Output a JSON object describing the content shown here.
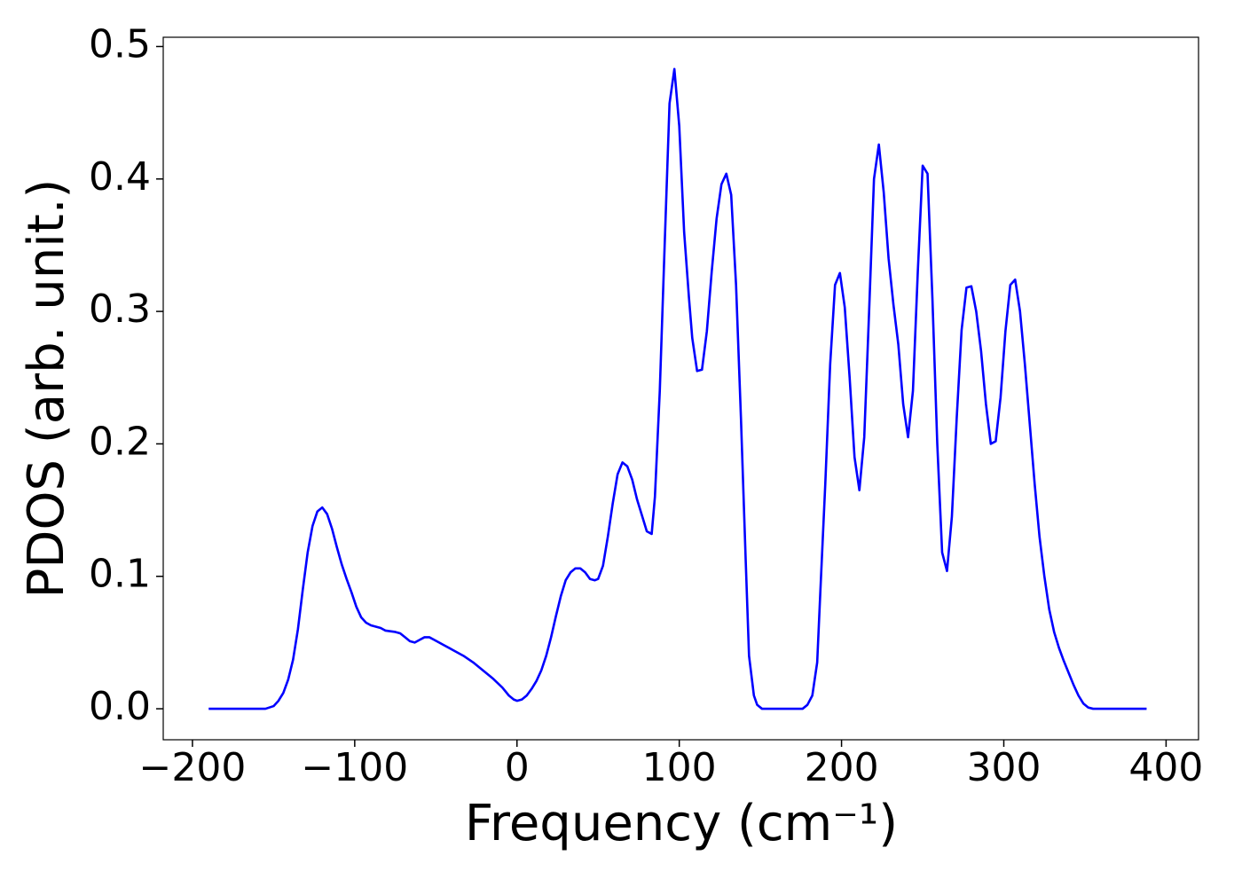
{
  "chart_data": {
    "type": "line",
    "xlabel": "Frequency (cm⁻¹)",
    "ylabel": "PDOS (arb. unit.)",
    "xlim": [
      -218,
      420
    ],
    "ylim": [
      -0.0234,
      0.507
    ],
    "xticks": [
      {
        "value": -200,
        "label": "−200"
      },
      {
        "value": -100,
        "label": "−100"
      },
      0,
      100,
      200,
      300,
      400
    ],
    "yticks": [
      {
        "value": 0,
        "label": "0.0"
      },
      0.1,
      0.2,
      0.3,
      0.4,
      0.5
    ],
    "grid": false,
    "series": [
      {
        "name": "PDOS",
        "color": "#0000ff",
        "x": [
          -190,
          -155,
          -150,
          -147,
          -144,
          -141,
          -138,
          -135,
          -132,
          -129,
          -126,
          -123,
          -120,
          -117,
          -114,
          -111,
          -108,
          -105,
          -102,
          -99,
          -96,
          -93,
          -90,
          -87,
          -84,
          -81,
          -75,
          -72,
          -69,
          -66,
          -63,
          -60,
          -57,
          -54,
          -51,
          -45,
          -39,
          -33,
          -27,
          -21,
          -15,
          -9,
          -5,
          -2,
          0,
          3,
          6,
          9,
          12,
          15,
          18,
          21,
          24,
          27,
          30,
          33,
          36,
          39,
          42,
          45,
          48,
          50,
          53,
          56,
          59,
          62,
          65,
          68,
          71,
          74,
          77,
          80,
          83,
          85,
          88,
          91,
          94,
          97,
          100,
          103,
          106,
          108,
          111,
          114,
          117,
          120,
          123,
          126,
          129,
          132,
          135,
          138,
          141,
          143,
          146,
          148,
          151,
          176,
          179,
          182,
          185,
          187,
          190,
          193,
          196,
          199,
          202,
          205,
          208,
          211,
          214,
          217,
          220,
          223,
          226,
          229,
          232,
          235,
          238,
          241,
          244,
          247,
          250,
          253,
          256,
          259,
          262,
          265,
          268,
          271,
          274,
          277,
          280,
          283,
          286,
          289,
          292,
          295,
          298,
          301,
          304,
          307,
          310,
          313,
          316,
          319,
          322,
          325,
          328,
          331,
          334,
          337,
          340,
          343,
          346,
          349,
          352,
          355,
          388
        ],
        "values": [
          0,
          0,
          0.002,
          0.006,
          0.012,
          0.022,
          0.037,
          0.06,
          0.09,
          0.118,
          0.138,
          0.149,
          0.152,
          0.147,
          0.136,
          0.122,
          0.109,
          0.098,
          0.088,
          0.077,
          0.069,
          0.065,
          0.063,
          0.062,
          0.061,
          0.059,
          0.058,
          0.057,
          0.054,
          0.051,
          0.05,
          0.052,
          0.054,
          0.054,
          0.052,
          0.048,
          0.044,
          0.04,
          0.035,
          0.029,
          0.023,
          0.016,
          0.01,
          0.007,
          0.006,
          0.007,
          0.01,
          0.015,
          0.021,
          0.029,
          0.04,
          0.054,
          0.07,
          0.085,
          0.097,
          0.103,
          0.106,
          0.106,
          0.103,
          0.098,
          0.097,
          0.098,
          0.108,
          0.13,
          0.155,
          0.177,
          0.186,
          0.183,
          0.173,
          0.158,
          0.146,
          0.134,
          0.132,
          0.16,
          0.24,
          0.35,
          0.457,
          0.483,
          0.44,
          0.36,
          0.31,
          0.28,
          0.255,
          0.256,
          0.285,
          0.33,
          0.37,
          0.396,
          0.404,
          0.388,
          0.32,
          0.22,
          0.11,
          0.04,
          0.01,
          0.003,
          0,
          0,
          0.003,
          0.01,
          0.035,
          0.09,
          0.17,
          0.26,
          0.32,
          0.329,
          0.303,
          0.25,
          0.19,
          0.165,
          0.205,
          0.3,
          0.4,
          0.426,
          0.39,
          0.34,
          0.305,
          0.275,
          0.23,
          0.205,
          0.24,
          0.33,
          0.41,
          0.404,
          0.31,
          0.2,
          0.118,
          0.104,
          0.145,
          0.22,
          0.286,
          0.318,
          0.319,
          0.3,
          0.27,
          0.23,
          0.2,
          0.202,
          0.235,
          0.285,
          0.32,
          0.324,
          0.3,
          0.26,
          0.215,
          0.17,
          0.13,
          0.1,
          0.075,
          0.058,
          0.046,
          0.036,
          0.027,
          0.018,
          0.01,
          0.004,
          0.001,
          0,
          0
        ]
      }
    ]
  }
}
